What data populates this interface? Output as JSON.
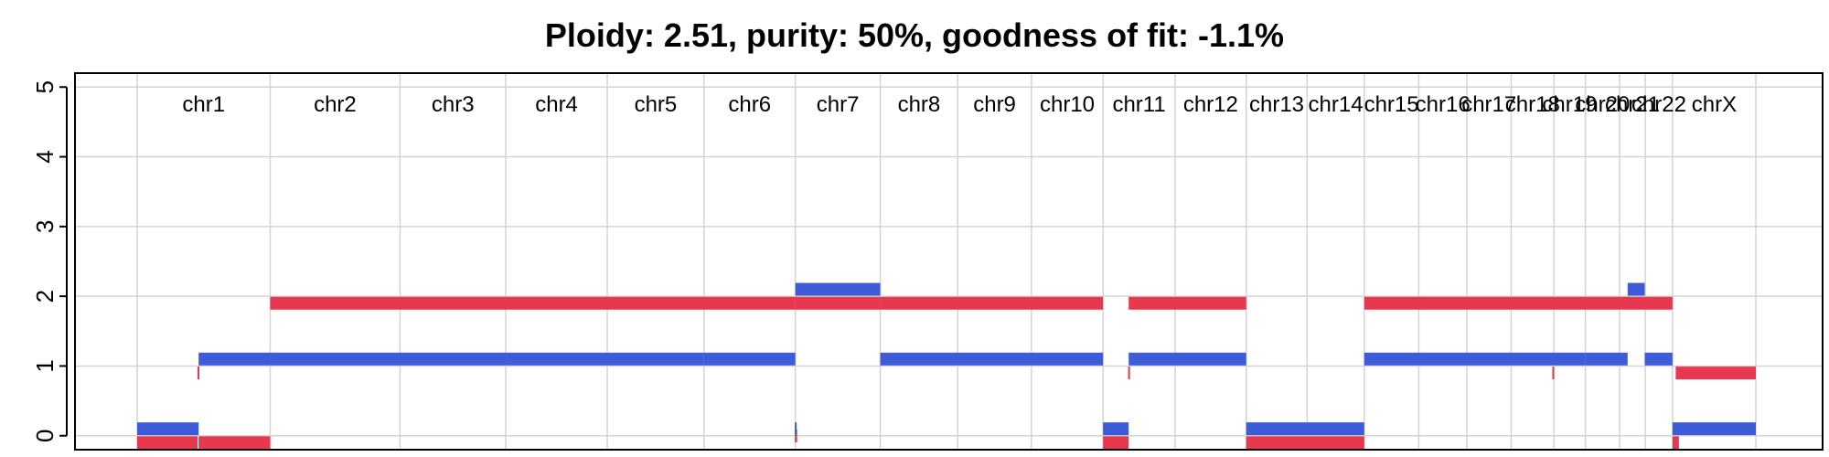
{
  "title": "Ploidy: 2.51, purity: 50%, goodness of fit: -1.1%",
  "chart_data": {
    "type": "segments",
    "title": "Ploidy: 2.51, purity: 50%, goodness of fit: -1.1%",
    "ylim": [
      -0.2,
      5.2
    ],
    "yticks": [
      0,
      1,
      2,
      3,
      4,
      5
    ],
    "grid": true,
    "xunit": "Mb",
    "chromosomes": [
      {
        "name": "chr1",
        "start": 0,
        "end": 249
      },
      {
        "name": "chr2",
        "start": 249,
        "end": 492
      },
      {
        "name": "chr3",
        "start": 492,
        "end": 690
      },
      {
        "name": "chr4",
        "start": 690,
        "end": 880
      },
      {
        "name": "chr5",
        "start": 880,
        "end": 1061
      },
      {
        "name": "chr6",
        "start": 1061,
        "end": 1232
      },
      {
        "name": "chr7",
        "start": 1232,
        "end": 1391
      },
      {
        "name": "chr8",
        "start": 1391,
        "end": 1536
      },
      {
        "name": "chr9",
        "start": 1536,
        "end": 1674
      },
      {
        "name": "chr10",
        "start": 1674,
        "end": 1808
      },
      {
        "name": "chr11",
        "start": 1808,
        "end": 1943
      },
      {
        "name": "chr12",
        "start": 1943,
        "end": 2076
      },
      {
        "name": "chr13",
        "start": 2076,
        "end": 2190
      },
      {
        "name": "chr14",
        "start": 2190,
        "end": 2297
      },
      {
        "name": "chr15",
        "start": 2297,
        "end": 2399
      },
      {
        "name": "chr16",
        "start": 2399,
        "end": 2489
      },
      {
        "name": "chr17",
        "start": 2489,
        "end": 2572
      },
      {
        "name": "chr18",
        "start": 2572,
        "end": 2652
      },
      {
        "name": "chr19",
        "start": 2652,
        "end": 2711
      },
      {
        "name": "chr20",
        "start": 2711,
        "end": 2775
      },
      {
        "name": "chr21",
        "start": 2775,
        "end": 2823
      },
      {
        "name": "chr22",
        "start": 2823,
        "end": 2874
      },
      {
        "name": "chrX",
        "start": 2874,
        "end": 3030
      }
    ],
    "series": [
      {
        "color": "#E8384F",
        "thick": 14,
        "segments": [
          [
            0,
            113,
            -0.1
          ],
          [
            113,
            115,
            0.9
          ],
          [
            115,
            249,
            -0.1
          ],
          [
            249,
            1232,
            1.9
          ],
          [
            1232,
            1391,
            1.9
          ],
          [
            1391,
            1808,
            1.9
          ],
          [
            1231,
            1232,
            0.0
          ],
          [
            1232,
            1233,
            0.0
          ],
          [
            1808,
            1856,
            -0.1
          ],
          [
            1855,
            1857,
            0.9
          ],
          [
            1856,
            2076,
            1.9
          ],
          [
            2076,
            2297,
            -0.1
          ],
          [
            2297,
            2874,
            1.9
          ],
          [
            2649,
            2651,
            0.9
          ],
          [
            2874,
            2886,
            -0.1
          ],
          [
            2880,
            3030,
            0.9
          ]
        ]
      },
      {
        "color": "#3E5BD8",
        "thick": 14,
        "segments": [
          [
            0,
            115,
            0.1
          ],
          [
            115,
            249,
            1.1
          ],
          [
            249,
            690,
            1.1
          ],
          [
            690,
            1061,
            1.1
          ],
          [
            1061,
            1232,
            1.1
          ],
          [
            1231,
            1232,
            0.1
          ],
          [
            1232,
            1391,
            2.1
          ],
          [
            1391,
            1808,
            1.1
          ],
          [
            1808,
            1856,
            0.1
          ],
          [
            1856,
            2076,
            1.1
          ],
          [
            2076,
            2297,
            0.1
          ],
          [
            2297,
            2711,
            1.1
          ],
          [
            2711,
            2790,
            1.1
          ],
          [
            2790,
            2822,
            2.1
          ],
          [
            2822,
            2874,
            1.1
          ],
          [
            2874,
            3030,
            0.1
          ]
        ]
      }
    ]
  }
}
